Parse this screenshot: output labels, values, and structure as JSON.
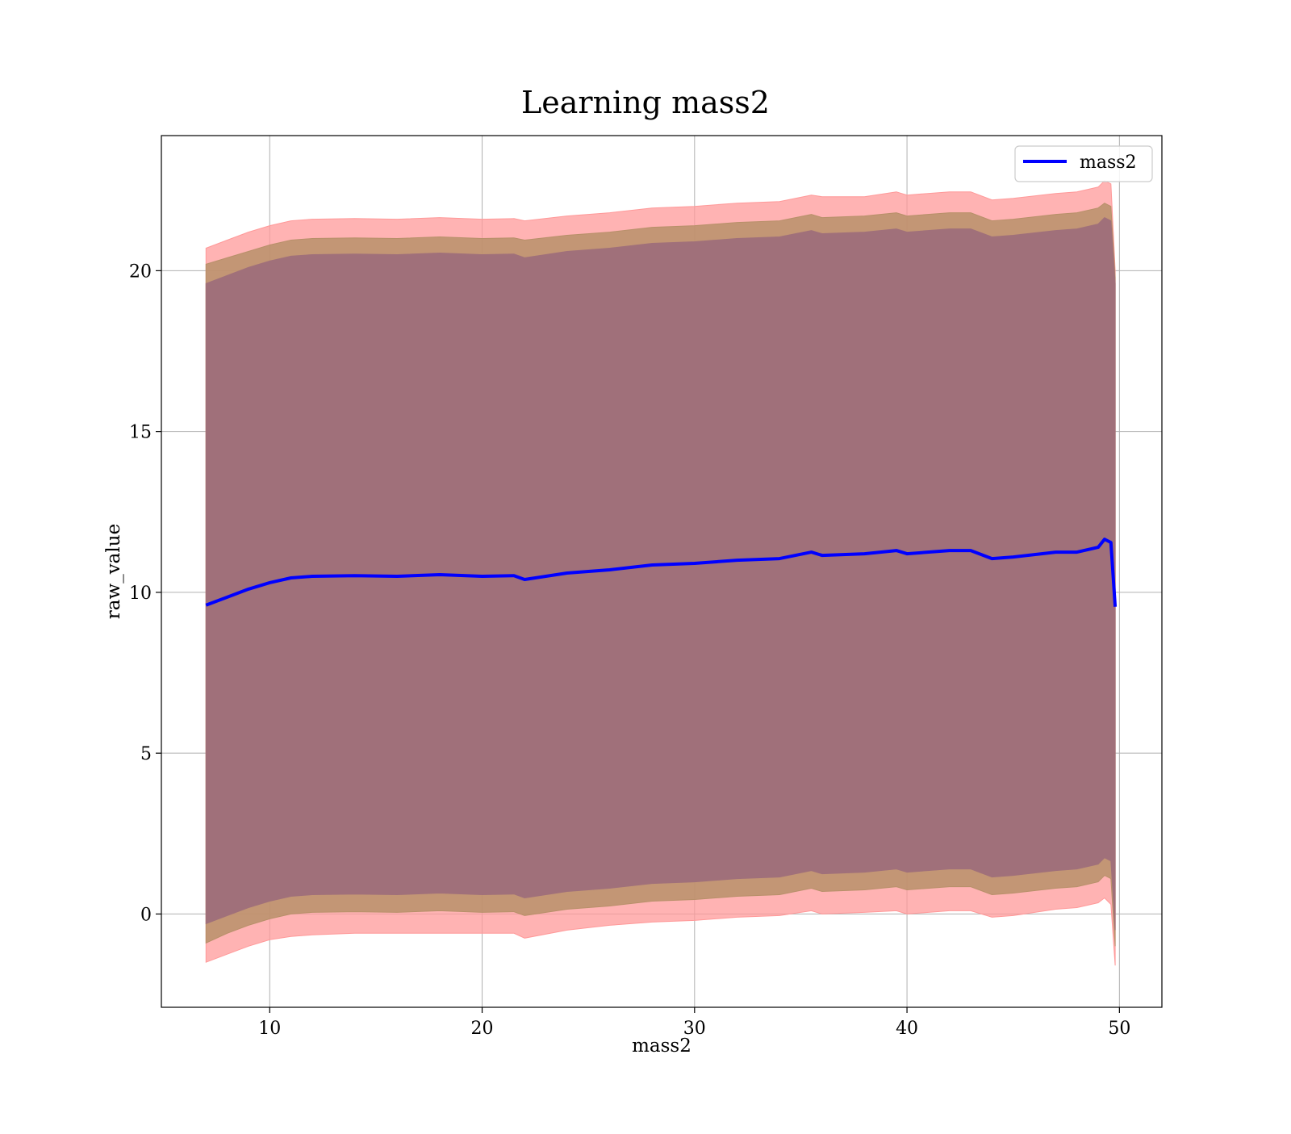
{
  "chart_data": {
    "type": "line",
    "title": "Learning mass2",
    "xlabel": "mass2",
    "ylabel": "raw_value",
    "xlim": [
      4.9,
      52
    ],
    "ylim": [
      -2.9,
      24.2
    ],
    "xticks": [
      10,
      20,
      30,
      40,
      50
    ],
    "yticks": [
      0,
      5,
      10,
      15,
      20
    ],
    "grid": true,
    "legend": {
      "placement": "top-right",
      "entries": [
        "mass2"
      ]
    },
    "colors": {
      "mean_line": "#0000ff",
      "outer_band": "#ff9999",
      "middle_band": "#b8906a",
      "inner_band": "#a0707a",
      "grid": "#b0b0b0"
    },
    "x": [
      7.0,
      8.0,
      9.0,
      10.0,
      11.0,
      12.0,
      14.0,
      16.0,
      18.0,
      20.0,
      21.5,
      22.0,
      24.0,
      26.0,
      28.0,
      30.0,
      32.0,
      34.0,
      35.5,
      36.0,
      38.0,
      39.5,
      40.0,
      42.0,
      43.0,
      44.0,
      45.0,
      47.0,
      48.0,
      49.0,
      49.3,
      49.6,
      49.8
    ],
    "series": [
      {
        "name": "mass2",
        "role": "mean",
        "values": [
          9.6,
          9.85,
          10.1,
          10.3,
          10.45,
          10.5,
          10.52,
          10.5,
          10.55,
          10.5,
          10.52,
          10.4,
          10.6,
          10.7,
          10.85,
          10.9,
          11.0,
          11.05,
          11.25,
          11.15,
          11.2,
          11.3,
          11.2,
          11.3,
          11.3,
          11.05,
          11.1,
          11.25,
          11.25,
          11.4,
          11.65,
          11.55,
          9.55
        ]
      },
      {
        "role": "outer_band",
        "lower": [
          -1.5,
          -1.25,
          -1.0,
          -0.8,
          -0.7,
          -0.65,
          -0.6,
          -0.6,
          -0.6,
          -0.6,
          -0.6,
          -0.75,
          -0.5,
          -0.35,
          -0.25,
          -0.2,
          -0.1,
          -0.05,
          0.1,
          0.0,
          0.05,
          0.1,
          0.0,
          0.1,
          0.1,
          -0.1,
          -0.05,
          0.15,
          0.2,
          0.35,
          0.5,
          0.3,
          -1.6
        ],
        "upper": [
          20.7,
          20.95,
          21.2,
          21.4,
          21.55,
          21.6,
          21.62,
          21.6,
          21.65,
          21.6,
          21.62,
          21.55,
          21.7,
          21.8,
          21.95,
          22.0,
          22.1,
          22.15,
          22.35,
          22.3,
          22.3,
          22.45,
          22.35,
          22.45,
          22.45,
          22.2,
          22.25,
          22.4,
          22.45,
          22.6,
          22.8,
          22.7,
          20.0
        ]
      },
      {
        "role": "middle_band",
        "lower": [
          -0.9,
          -0.6,
          -0.35,
          -0.15,
          0.0,
          0.05,
          0.07,
          0.05,
          0.1,
          0.05,
          0.07,
          -0.05,
          0.15,
          0.25,
          0.4,
          0.45,
          0.55,
          0.6,
          0.8,
          0.7,
          0.75,
          0.85,
          0.75,
          0.85,
          0.85,
          0.6,
          0.65,
          0.8,
          0.85,
          1.0,
          1.2,
          1.1,
          -1.0
        ],
        "upper": [
          20.2,
          20.4,
          20.6,
          20.8,
          20.95,
          21.0,
          21.02,
          21.0,
          21.05,
          21.0,
          21.02,
          20.95,
          21.1,
          21.2,
          21.35,
          21.4,
          21.5,
          21.55,
          21.75,
          21.65,
          21.7,
          21.8,
          21.7,
          21.8,
          21.8,
          21.55,
          21.6,
          21.75,
          21.8,
          21.95,
          22.1,
          22.0,
          19.8
        ]
      },
      {
        "role": "inner_band",
        "lower": [
          -0.3,
          -0.05,
          0.2,
          0.4,
          0.55,
          0.6,
          0.62,
          0.6,
          0.65,
          0.6,
          0.62,
          0.5,
          0.7,
          0.8,
          0.95,
          1.0,
          1.1,
          1.15,
          1.35,
          1.25,
          1.3,
          1.4,
          1.3,
          1.4,
          1.4,
          1.15,
          1.2,
          1.35,
          1.4,
          1.55,
          1.75,
          1.65,
          -0.5
        ],
        "upper": [
          19.6,
          19.85,
          20.1,
          20.3,
          20.45,
          20.5,
          20.52,
          20.5,
          20.55,
          20.5,
          20.52,
          20.4,
          20.6,
          20.7,
          20.85,
          20.9,
          21.0,
          21.05,
          21.25,
          21.15,
          21.2,
          21.3,
          21.2,
          21.3,
          21.3,
          21.05,
          21.1,
          21.25,
          21.3,
          21.45,
          21.65,
          21.55,
          19.6
        ]
      }
    ]
  }
}
